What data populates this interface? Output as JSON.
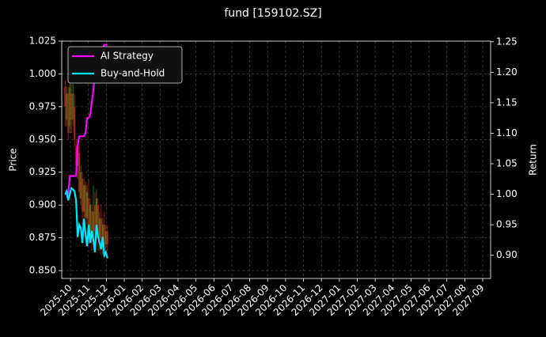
{
  "chart_data": {
    "type": "candlestick",
    "title": "fund [159102.SZ]",
    "ylabel": "Price",
    "y2label": "Return",
    "grid": true,
    "legend": "upper left",
    "up_color": "#1f8f1f",
    "down_color": "#e01010",
    "xlim": [
      -0.49,
      23.44
    ],
    "xticks": [
      {
        "value": 0,
        "label": "2025-10"
      },
      {
        "value": 1,
        "label": "2025-11"
      },
      {
        "value": 2,
        "label": "2025-12"
      },
      {
        "value": 3,
        "label": "2026-01"
      },
      {
        "value": 4,
        "label": "2026-02"
      },
      {
        "value": 5,
        "label": "2026-03"
      },
      {
        "value": 6,
        "label": "2026-04"
      },
      {
        "value": 7,
        "label": "2026-05"
      },
      {
        "value": 8,
        "label": "2026-06"
      },
      {
        "value": 9,
        "label": "2026-07"
      },
      {
        "value": 10,
        "label": "2026-08"
      },
      {
        "value": 11,
        "label": "2026-09"
      },
      {
        "value": 12,
        "label": "2026-10"
      },
      {
        "value": 13,
        "label": "2026-11"
      },
      {
        "value": 14,
        "label": "2026-12"
      },
      {
        "value": 15,
        "label": "2027-01"
      },
      {
        "value": 16,
        "label": "2027-02"
      },
      {
        "value": 17,
        "label": "2027-03"
      },
      {
        "value": 18,
        "label": "2027-04"
      },
      {
        "value": 19,
        "label": "2027-05"
      },
      {
        "value": 20,
        "label": "2027-06"
      },
      {
        "value": 21,
        "label": "2027-07"
      },
      {
        "value": 22,
        "label": "2027-08"
      },
      {
        "value": 23,
        "label": "2027-09"
      }
    ],
    "ylim": [
      0.844,
      1.025
    ],
    "yticks": [
      {
        "value": 0.85,
        "label": "0.850"
      },
      {
        "value": 0.875,
        "label": "0.875"
      },
      {
        "value": 0.9,
        "label": "0.900"
      },
      {
        "value": 0.925,
        "label": "0.925"
      },
      {
        "value": 0.95,
        "label": "0.950"
      },
      {
        "value": 0.975,
        "label": "0.975"
      },
      {
        "value": 1.0,
        "label": "1.000"
      },
      {
        "value": 1.025,
        "label": "1.025"
      }
    ],
    "y2lim": [
      0.862,
      1.251
    ],
    "y2ticks": [
      {
        "value": 0.9,
        "label": "0.90"
      },
      {
        "value": 0.95,
        "label": "0.95"
      },
      {
        "value": 1.0,
        "label": "1.00"
      },
      {
        "value": 1.05,
        "label": "1.05"
      },
      {
        "value": 1.1,
        "label": "1.10"
      },
      {
        "value": 1.15,
        "label": "1.15"
      },
      {
        "value": 1.2,
        "label": "1.20"
      },
      {
        "value": 1.25,
        "label": "1.25"
      }
    ],
    "x": [
      -0.3,
      -0.2125,
      -0.125,
      -0.0375,
      0.05,
      0.1375,
      0.225,
      0.3125,
      0.4,
      0.4875,
      0.575,
      0.6625,
      0.75,
      0.8375,
      0.925,
      1.0125,
      1.1,
      1.1875,
      1.275,
      1.3625,
      1.45,
      1.5375,
      1.625,
      1.7125,
      1.8,
      1.8875,
      1.975,
      2.0625
    ],
    "open": [
      0.99,
      0.965,
      0.985,
      0.96,
      0.985,
      0.965,
      0.975,
      0.945,
      0.93,
      0.94,
      0.905,
      0.92,
      0.895,
      0.915,
      0.89,
      0.905,
      0.88,
      0.895,
      0.875,
      0.9,
      0.88,
      0.9,
      0.875,
      0.89,
      0.868,
      0.885,
      0.87,
      0.88
    ],
    "high": [
      0.995,
      0.99,
      0.99,
      0.995,
      0.992,
      0.993,
      0.985,
      0.95,
      0.948,
      0.945,
      0.93,
      0.925,
      0.92,
      0.918,
      0.915,
      0.92,
      0.905,
      0.9,
      0.915,
      0.91,
      0.912,
      0.905,
      0.895,
      0.9,
      0.89,
      0.895,
      0.885,
      0.885
    ],
    "low": [
      0.96,
      0.96,
      0.95,
      0.955,
      0.955,
      0.96,
      0.945,
      0.925,
      0.92,
      0.905,
      0.9,
      0.885,
      0.89,
      0.88,
      0.885,
      0.87,
      0.875,
      0.865,
      0.87,
      0.87,
      0.875,
      0.865,
      0.865,
      0.862,
      0.862,
      0.862,
      0.862,
      0.865
    ],
    "close": [
      0.975,
      0.985,
      0.955,
      0.99,
      0.965,
      0.985,
      0.95,
      0.93,
      0.945,
      0.91,
      0.925,
      0.895,
      0.915,
      0.89,
      0.91,
      0.88,
      0.9,
      0.875,
      0.895,
      0.88,
      0.905,
      0.875,
      0.89,
      0.868,
      0.885,
      0.87,
      0.88,
      0.87
    ],
    "series": [
      {
        "name": "AI Strategy",
        "color": "#ff00ff",
        "axis": "y2",
        "values": [
          1.0,
          1.0,
          1.0,
          1.03,
          1.03,
          1.03,
          1.03,
          1.03,
          1.08,
          1.095,
          1.095,
          1.095,
          1.095,
          1.1,
          1.125,
          1.125,
          1.13,
          1.15,
          1.17,
          1.2,
          1.2,
          1.21,
          1.22,
          1.24,
          1.24,
          1.245,
          1.245,
          1.245
        ]
      },
      {
        "name": "Buy-and-Hold",
        "color": "#00e5ff",
        "axis": "y2",
        "values": [
          1.0,
          1.005,
          0.99,
          1.0,
          1.01,
          1.008,
          1.005,
          0.99,
          0.93,
          0.95,
          0.945,
          0.92,
          0.96,
          0.935,
          0.915,
          0.95,
          0.92,
          0.94,
          0.925,
          0.905,
          0.95,
          0.93,
          0.92,
          0.91,
          0.93,
          0.9,
          0.905,
          0.895
        ]
      }
    ]
  }
}
